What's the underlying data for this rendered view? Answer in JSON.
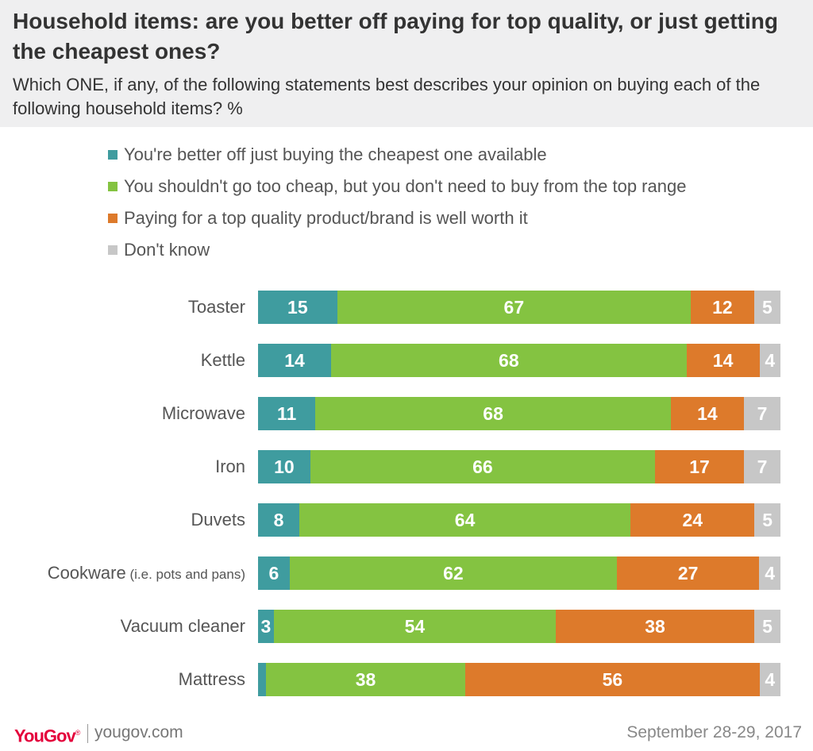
{
  "title": "Household items: are you better off paying for top quality, or just getting the cheapest ones?",
  "subtitle": "Which ONE, if any, of the following statements best describes your opinion on buying each of the following household items? %",
  "footer": {
    "brand": "YouGov",
    "site": "yougov.com",
    "date": "September 28-29, 2017"
  },
  "chart_data": {
    "type": "bar",
    "orientation": "horizontal",
    "stacked": true,
    "title": "Household items: are you better off paying for top quality, or just getting the cheapest ones?",
    "xlabel": "",
    "ylabel": "",
    "xlim": [
      0,
      100
    ],
    "grid": false,
    "legend_position": "top",
    "categories": [
      {
        "label": "Toaster",
        "note": ""
      },
      {
        "label": "Kettle",
        "note": ""
      },
      {
        "label": "Microwave",
        "note": ""
      },
      {
        "label": "Iron",
        "note": ""
      },
      {
        "label": "Duvets",
        "note": ""
      },
      {
        "label": "Cookware",
        "note": "(i.e. pots and pans)"
      },
      {
        "label": "Vacuum cleaner",
        "note": ""
      },
      {
        "label": "Mattress",
        "note": ""
      }
    ],
    "series": [
      {
        "name": "You're better off just buying the cheapest one available",
        "color": "#3f9c9f",
        "values": [
          15,
          14,
          11,
          10,
          8,
          6,
          3,
          1.5
        ],
        "labels": [
          "15",
          "14",
          "11",
          "10",
          "8",
          "6",
          "3",
          ""
        ]
      },
      {
        "name": "You shouldn't go too cheap, but you don't need to buy from the top range",
        "color": "#84c341",
        "values": [
          67,
          68,
          68,
          66,
          64,
          62,
          54,
          38
        ],
        "labels": [
          "67",
          "68",
          "68",
          "66",
          "64",
          "62",
          "54",
          "38"
        ]
      },
      {
        "name": "Paying for a top quality product/brand is well worth it",
        "color": "#dd7a2b",
        "values": [
          12,
          14,
          14,
          17,
          24,
          27,
          38,
          56
        ],
        "labels": [
          "12",
          "14",
          "14",
          "17",
          "24",
          "27",
          "38",
          "56"
        ]
      },
      {
        "name": "Don't know",
        "color": "#c7c7c7",
        "values": [
          5,
          4,
          7,
          7,
          5,
          4,
          5,
          4
        ],
        "labels": [
          "5",
          "4",
          "7",
          "7",
          "5",
          "4",
          "5",
          "4"
        ]
      }
    ]
  }
}
